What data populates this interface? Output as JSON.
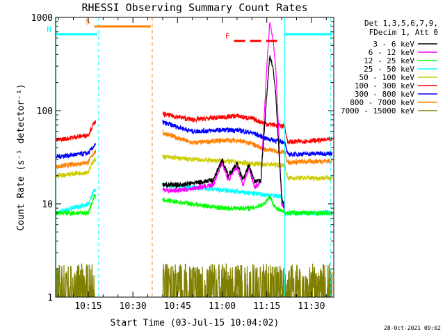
{
  "chart_data": {
    "type": "line",
    "title": "RHESSI Observing Summary Count Rates",
    "xlabel": "Start Time (03-Jul-15 10:04:02)",
    "ylabel": "Count Rate (s⁻¹ detector⁻¹)",
    "x_ticks": [
      "10:15",
      "10:30",
      "10:45",
      "11:00",
      "11:15",
      "11:30"
    ],
    "x_range": [
      "10:04:02",
      "11:37:30"
    ],
    "y_scale": "log",
    "y_ticks": [
      1,
      10,
      100,
      1000
    ],
    "ylim": [
      1,
      1000
    ],
    "legend_placement": "right",
    "legend_header": [
      "Det 1,3,5,6,7,9,",
      "FDecim 1, Att 0"
    ],
    "footer_date": "28-Oct-2021 09:02",
    "flags": [
      {
        "label": "S",
        "color": "#ff8000",
        "from": "10:17",
        "to": "10:36",
        "level": 800
      },
      {
        "label": "N",
        "color": "#00ffff",
        "from": "10:04",
        "to": "10:18",
        "level": 660
      },
      {
        "label": "F",
        "color": "#ff0000",
        "from": "11:04",
        "to": "11:20",
        "level": 560,
        "dashed": true
      },
      {
        "label": "",
        "color": "#00ffff",
        "from": "11:21",
        "to": "11:37",
        "level": 660
      }
    ],
    "vlines": [
      {
        "time": "10:04:10",
        "color": "#00ffff",
        "dashed": false
      },
      {
        "time": "10:18:30",
        "color": "#00ffff",
        "dashed": true
      },
      {
        "time": "10:36:30",
        "color": "#ff8000",
        "dashed": true
      },
      {
        "time": "11:21:00",
        "color": "#00ffff",
        "dashed": false
      },
      {
        "time": "11:36:30",
        "color": "#00ffff",
        "dashed": true
      }
    ],
    "segments": [
      [
        "10:04:02",
        "10:17:30"
      ],
      [
        "10:40:00",
        "11:37:00"
      ]
    ],
    "series": [
      {
        "name": "3 - 6 keV",
        "color": "#000000",
        "points": [
          [
            "10:40",
            16
          ],
          [
            "10:46",
            16
          ],
          [
            "10:52",
            17
          ],
          [
            "10:57",
            18
          ],
          [
            "11:00",
            30
          ],
          [
            "11:02",
            20
          ],
          [
            "11:05",
            27
          ],
          [
            "11:07",
            18
          ],
          [
            "11:09",
            26
          ],
          [
            "11:11",
            17
          ],
          [
            "11:13",
            18
          ],
          [
            "11:15",
            150
          ],
          [
            "11:16",
            380
          ],
          [
            "11:17",
            300
          ],
          [
            "11:18",
            150
          ],
          [
            "11:19",
            40
          ],
          [
            "11:20",
            12
          ],
          [
            "11:21",
            9
          ]
        ]
      },
      {
        "name": "6 - 12 keV",
        "color": "#ff00ff",
        "points": [
          [
            "10:40",
            14
          ],
          [
            "10:46",
            14
          ],
          [
            "10:52",
            15
          ],
          [
            "10:57",
            16
          ],
          [
            "11:00",
            28
          ],
          [
            "11:02",
            18
          ],
          [
            "11:05",
            25
          ],
          [
            "11:07",
            16
          ],
          [
            "11:09",
            24
          ],
          [
            "11:11",
            15
          ],
          [
            "11:13",
            17
          ],
          [
            "11:15",
            300
          ],
          [
            "11:16",
            900
          ],
          [
            "11:17",
            600
          ],
          [
            "11:18",
            300
          ],
          [
            "11:19",
            60
          ],
          [
            "11:20",
            10
          ],
          [
            "11:21",
            9
          ]
        ]
      },
      {
        "name": "12 - 25 keV",
        "color": "#00ff00",
        "points": [
          [
            "10:04",
            8
          ],
          [
            "10:15",
            8
          ],
          [
            "10:17",
            12
          ],
          [
            "10:40",
            11
          ],
          [
            "10:50",
            10
          ],
          [
            "11:00",
            9
          ],
          [
            "11:10",
            9
          ],
          [
            "11:14",
            10
          ],
          [
            "11:16",
            12
          ],
          [
            "11:18",
            9
          ],
          [
            "11:21",
            8
          ],
          [
            "11:37",
            8
          ]
        ]
      },
      {
        "name": "25 - 50 keV",
        "color": "#00ffff",
        "points": [
          [
            "10:04",
            8
          ],
          [
            "10:15",
            10
          ],
          [
            "10:17",
            14
          ],
          [
            "10:40",
            16
          ],
          [
            "10:50",
            15
          ],
          [
            "11:00",
            14
          ],
          [
            "11:10",
            13
          ],
          [
            "11:20",
            12
          ],
          [
            "11:21",
            8
          ],
          [
            "11:37",
            8
          ]
        ]
      },
      {
        "name": "50 - 100 keV",
        "color": "#cccc00",
        "points": [
          [
            "10:04",
            20
          ],
          [
            "10:15",
            22
          ],
          [
            "10:17",
            30
          ],
          [
            "10:40",
            32
          ],
          [
            "10:50",
            30
          ],
          [
            "11:00",
            29
          ],
          [
            "11:10",
            27
          ],
          [
            "11:21",
            26
          ],
          [
            "11:22",
            19
          ],
          [
            "11:37",
            19
          ]
        ]
      },
      {
        "name": "100 - 300 keV",
        "color": "#ff0000",
        "points": [
          [
            "10:04",
            48
          ],
          [
            "10:15",
            55
          ],
          [
            "10:17",
            75
          ],
          [
            "10:40",
            92
          ],
          [
            "10:50",
            80
          ],
          [
            "11:00",
            85
          ],
          [
            "11:05",
            88
          ],
          [
            "11:10",
            82
          ],
          [
            "11:15",
            72
          ],
          [
            "11:21",
            68
          ],
          [
            "11:22",
            46
          ],
          [
            "11:37",
            49
          ]
        ]
      },
      {
        "name": "300 - 800 keV",
        "color": "#0000ff",
        "points": [
          [
            "10:04",
            32
          ],
          [
            "10:15",
            35
          ],
          [
            "10:17",
            42
          ],
          [
            "10:40",
            75
          ],
          [
            "10:50",
            60
          ],
          [
            "11:00",
            62
          ],
          [
            "11:05",
            62
          ],
          [
            "11:10",
            58
          ],
          [
            "11:15",
            50
          ],
          [
            "11:21",
            46
          ],
          [
            "11:22",
            34
          ],
          [
            "11:37",
            35
          ]
        ]
      },
      {
        "name": "800 - 7000 keV",
        "color": "#ff8000",
        "points": [
          [
            "10:04",
            25
          ],
          [
            "10:15",
            28
          ],
          [
            "10:17",
            36
          ],
          [
            "10:40",
            58
          ],
          [
            "10:50",
            45
          ],
          [
            "11:00",
            48
          ],
          [
            "11:05",
            48
          ],
          [
            "11:10",
            44
          ],
          [
            "11:15",
            38
          ],
          [
            "11:21",
            36
          ],
          [
            "11:22",
            28
          ],
          [
            "11:37",
            29
          ]
        ]
      },
      {
        "name": "7000 - 15000 keV",
        "color": "#808000",
        "points": [
          [
            "10:04",
            1.5
          ],
          [
            "10:17",
            1.6
          ],
          [
            "10:40",
            1.4
          ],
          [
            "10:55",
            1.7
          ],
          [
            "11:00",
            2.2
          ],
          [
            "11:05",
            2.0
          ],
          [
            "11:10",
            1.6
          ],
          [
            "11:21",
            1.5
          ],
          [
            "11:37",
            1.6
          ]
        ]
      }
    ]
  }
}
